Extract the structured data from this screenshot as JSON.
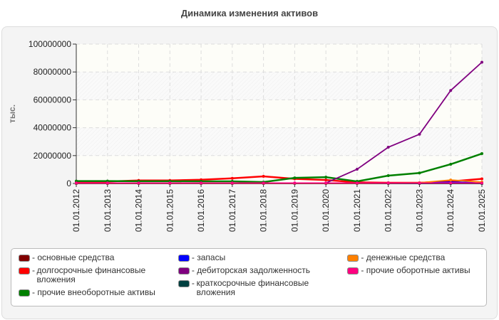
{
  "chart_data": {
    "type": "line",
    "title": "Динамика изменения активов",
    "ylabel": "тыс.",
    "xlabel": "",
    "ylim": [
      0,
      100000000
    ],
    "yticks": [
      0,
      20000000,
      40000000,
      60000000,
      80000000,
      100000000
    ],
    "grid": true,
    "legend_position": "bottom",
    "categories": [
      "01.01.2012",
      "01.01.2013",
      "01.01.2014",
      "01.01.2015",
      "01.01.2016",
      "01.01.2017",
      "01.01.2018",
      "01.01.2019",
      "01.01.2020",
      "01.01.2021",
      "01.01.2022",
      "01.01.2023",
      "01.01.2024",
      "01.01.2025"
    ],
    "series": [
      {
        "name": "основные средства",
        "color": "#800000",
        "values": [
          0,
          0,
          0,
          0,
          0,
          0,
          0,
          0,
          0,
          0,
          0,
          0,
          0,
          0
        ]
      },
      {
        "name": "долгосрочные финансовые вложения",
        "color": "#ff0000",
        "values": [
          1400000,
          1400000,
          2200000,
          2200000,
          2700000,
          3700000,
          5100000,
          3300000,
          2500000,
          800000,
          500000,
          500000,
          1500000,
          3300000
        ]
      },
      {
        "name": "прочие внеоборотные активы",
        "color": "#008000",
        "values": [
          1700000,
          1700000,
          1600000,
          1600000,
          1500000,
          1500000,
          1000000,
          4000000,
          4500000,
          1500000,
          5600000,
          7500000,
          13800000,
          21400000
        ]
      },
      {
        "name": "запасы",
        "color": "#0000ff",
        "values": [
          300000,
          300000,
          300000,
          300000,
          300000,
          300000,
          300000,
          300000,
          300000,
          300000,
          300000,
          300000,
          1000000,
          600000
        ]
      },
      {
        "name": "дебиторская задолженность",
        "color": "#800080",
        "values": [
          0,
          0,
          0,
          0,
          0,
          0,
          0,
          0,
          300000,
          10200000,
          26000000,
          35300000,
          66700000,
          87000000
        ]
      },
      {
        "name": "краткосрочные финансовые вложения",
        "color": "#004040",
        "values": [
          0,
          0,
          0,
          0,
          0,
          0,
          0,
          0,
          0,
          0,
          0,
          0,
          0,
          0
        ]
      },
      {
        "name": "денежные средства",
        "color": "#ff8000",
        "values": [
          200000,
          200000,
          200000,
          200000,
          200000,
          200000,
          200000,
          200000,
          200000,
          200000,
          300000,
          500000,
          2500000,
          1000000
        ]
      },
      {
        "name": "прочие оборотные активы",
        "color": "#ff0080",
        "values": [
          300000,
          300000,
          300000,
          300000,
          300000,
          300000,
          300000,
          300000,
          300000,
          300000,
          300000,
          300000,
          300000,
          300000
        ]
      }
    ]
  }
}
